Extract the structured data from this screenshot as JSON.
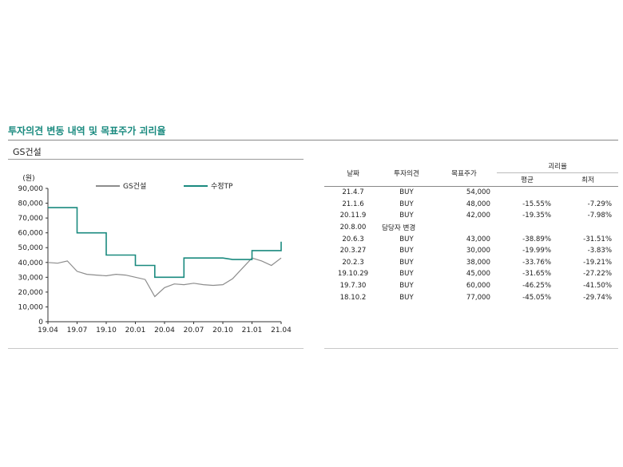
{
  "section_title": "투자의견 변동 내역 및 목표주가 괴리율",
  "chart_title": "GS건설",
  "legend": {
    "price": {
      "label": "GS건설",
      "color": "#8c8c8c"
    },
    "tp": {
      "label": "수정TP",
      "color": "#1a8a7f"
    }
  },
  "chart_data": {
    "type": "line",
    "ylabel": "(원)",
    "ylim": [
      0,
      90000
    ],
    "yticks": [
      "90,000",
      "80,000",
      "70,000",
      "60,000",
      "50,000",
      "40,000",
      "30,000",
      "20,000",
      "10,000",
      "0"
    ],
    "xticks": [
      "19.04",
      "19.07",
      "19.10",
      "20.01",
      "20.04",
      "20.07",
      "20.10",
      "21.01",
      "21.04"
    ],
    "series": [
      {
        "name": "GS건설",
        "x": [
          "19.04",
          "19.05",
          "19.06",
          "19.07",
          "19.08",
          "19.09",
          "19.10",
          "19.11",
          "19.12",
          "20.01",
          "20.02",
          "20.03",
          "20.04",
          "20.05",
          "20.06",
          "20.07",
          "20.08",
          "20.09",
          "20.10",
          "20.11",
          "20.12",
          "21.01",
          "21.02",
          "21.03",
          "21.04"
        ],
        "y": [
          40000,
          39500,
          41000,
          34000,
          32000,
          31500,
          31000,
          32000,
          31500,
          30000,
          28500,
          17000,
          23000,
          25500,
          25000,
          26000,
          25000,
          24500,
          25000,
          29000,
          36000,
          43000,
          41000,
          38000,
          43000
        ]
      },
      {
        "name": "수정TP",
        "x": [
          "19.04",
          "19.07",
          "19.07",
          "19.10",
          "19.10",
          "20.01",
          "20.01",
          "20.03",
          "20.03",
          "20.06",
          "20.06",
          "20.10",
          "20.11",
          "21.01",
          "21.01",
          "21.04",
          "21.04"
        ],
        "y": [
          77000,
          77000,
          60000,
          60000,
          45000,
          45000,
          38000,
          38000,
          30000,
          30000,
          43000,
          43000,
          42000,
          42000,
          48000,
          48000,
          54000
        ]
      }
    ]
  },
  "table": {
    "headers": {
      "date": "날짜",
      "opinion": "투자의견",
      "target": "목표주가",
      "disparity": "괴리율",
      "avg": "평균",
      "extreme": "최저"
    },
    "rows": [
      {
        "date": "21.4.7",
        "opinion": "BUY",
        "target": "54,000",
        "avg": "",
        "extreme": ""
      },
      {
        "date": "21.1.6",
        "opinion": "BUY",
        "target": "48,000",
        "avg": "-15.55%",
        "extreme": "-7.29%"
      },
      {
        "date": "20.11.9",
        "opinion": "BUY",
        "target": "42,000",
        "avg": "-19.35%",
        "extreme": "-7.98%"
      },
      {
        "date": "20.8.00",
        "note": "담당자 변경"
      },
      {
        "date": "20.6.3",
        "opinion": "BUY",
        "target": "43,000",
        "avg": "-38.89%",
        "extreme": "-31.51%"
      },
      {
        "date": "20.3.27",
        "opinion": "BUY",
        "target": "30,000",
        "avg": "-19.99%",
        "extreme": "-3.83%"
      },
      {
        "date": "20.2.3",
        "opinion": "BUY",
        "target": "38,000",
        "avg": "-33.76%",
        "extreme": "-19.21%"
      },
      {
        "date": "19.10.29",
        "opinion": "BUY",
        "target": "45,000",
        "avg": "-31.65%",
        "extreme": "-27.22%"
      },
      {
        "date": "19.7.30",
        "opinion": "BUY",
        "target": "60,000",
        "avg": "-46.25%",
        "extreme": "-41.50%"
      },
      {
        "date": "18.10.2",
        "opinion": "BUY",
        "target": "77,000",
        "avg": "-45.05%",
        "extreme": "-29.74%"
      }
    ]
  }
}
